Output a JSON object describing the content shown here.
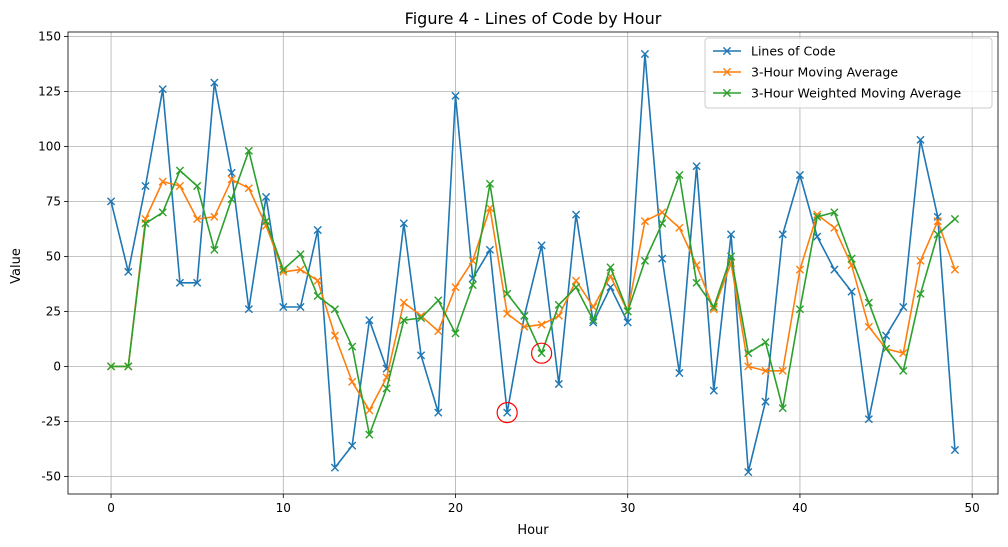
{
  "chart_data": {
    "type": "line",
    "title": "Figure 4 - Lines of Code by Hour",
    "xlabel": "Hour",
    "ylabel": "Value",
    "xlim": [
      -2.5,
      51.5
    ],
    "ylim": [
      -58,
      152
    ],
    "xticks": [
      0,
      10,
      20,
      30,
      40,
      50
    ],
    "yticks": [
      -50,
      -25,
      0,
      25,
      50,
      75,
      100,
      125,
      150
    ],
    "grid": true,
    "legend_position": "top-right",
    "x": [
      0,
      1,
      2,
      3,
      4,
      5,
      6,
      7,
      8,
      9,
      10,
      11,
      12,
      13,
      14,
      15,
      16,
      17,
      18,
      19,
      20,
      21,
      22,
      23,
      24,
      25,
      26,
      27,
      28,
      29,
      30,
      31,
      32,
      33,
      34,
      35,
      36,
      37,
      38,
      39,
      40,
      41,
      42,
      43,
      44,
      45,
      46,
      47,
      48,
      49
    ],
    "series": [
      {
        "name": "Lines of Code",
        "color": "#1f77b4",
        "values": [
          75,
          43,
          82,
          126,
          38,
          38,
          129,
          88,
          26,
          77,
          27,
          27,
          62,
          -46,
          -36,
          21,
          -1,
          65,
          5,
          -21,
          123,
          40,
          53,
          -21,
          23,
          55,
          -8,
          69,
          20,
          36,
          20,
          142,
          49,
          -3,
          91,
          -11,
          60,
          -48,
          -16,
          60,
          87,
          59,
          44,
          34,
          -24,
          14,
          27,
          103,
          68,
          -38
        ]
      },
      {
        "name": "3-Hour Moving Average",
        "color": "#ff7f0e",
        "values": [
          0,
          0,
          67,
          84,
          82,
          67,
          68,
          85,
          81,
          64,
          43,
          44,
          39,
          14,
          -7,
          -20,
          -5,
          29,
          23,
          16,
          36,
          48,
          72,
          24,
          18,
          19,
          23,
          39,
          27,
          41,
          25,
          66,
          70,
          63,
          46,
          26,
          47,
          0,
          -2,
          -2,
          44,
          69,
          63,
          46,
          18,
          8,
          6,
          48,
          66,
          44
        ]
      },
      {
        "name": "3-Hour Weighted Moving Average",
        "color": "#2ca02c",
        "values": [
          0,
          0,
          65,
          70,
          89,
          82,
          53,
          76,
          98,
          66,
          44,
          51,
          32,
          26,
          9,
          -31,
          -10,
          21,
          22,
          30,
          15,
          37,
          83,
          33,
          23,
          6,
          28,
          36,
          21,
          45,
          25,
          48,
          65,
          87,
          38,
          27,
          50,
          6,
          11,
          -19,
          26,
          68,
          70,
          49,
          29,
          8,
          -2,
          33,
          60,
          67
        ]
      }
    ],
    "annotations": [
      {
        "type": "circle",
        "x": 23,
        "y": -21,
        "color": "#ff0000"
      },
      {
        "type": "circle",
        "x": 25,
        "y": 6,
        "color": "#ff0000"
      }
    ]
  }
}
